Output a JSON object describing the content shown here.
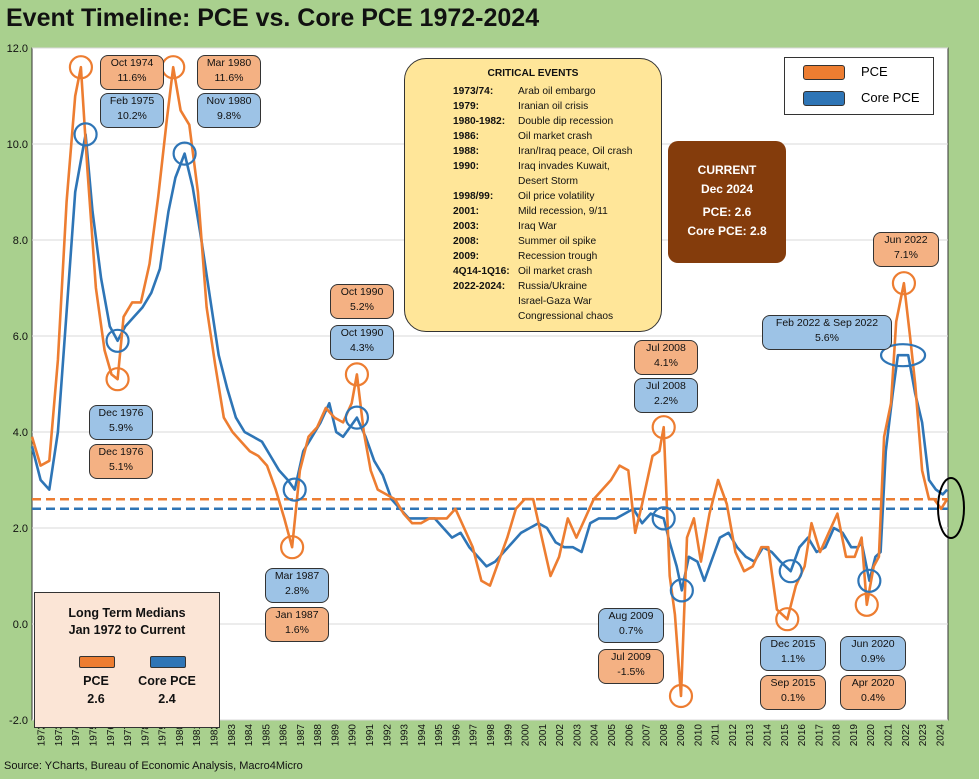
{
  "title": "Event Timeline: PCE vs. Core PCE 1972-2024",
  "source": "Source: YCharts, Bureau of Economic Analysis, Macro4Micro",
  "chart_data": {
    "type": "line",
    "ylim": [
      -2.0,
      12.0
    ],
    "yticks": [
      "-2.0",
      "0.0",
      "2.0",
      "4.0",
      "6.0",
      "8.0",
      "10.0",
      "12.0"
    ],
    "xlim": [
      1972,
      2025
    ],
    "xticks": [
      "1972",
      "1973",
      "1974",
      "1975",
      "1976",
      "1977",
      "1978",
      "1979",
      "1980",
      "1981",
      "1982",
      "1983",
      "1984",
      "1985",
      "1986",
      "1987",
      "1988",
      "1989",
      "1990",
      "1991",
      "1992",
      "1993",
      "1994",
      "1995",
      "1996",
      "1997",
      "1998",
      "1999",
      "2000",
      "2001",
      "2002",
      "2003",
      "2004",
      "2005",
      "2006",
      "2007",
      "2008",
      "2009",
      "2010",
      "2011",
      "2012",
      "2013",
      "2014",
      "2015",
      "2016",
      "2017",
      "2018",
      "2019",
      "2020",
      "2021",
      "2022",
      "2023",
      "2024"
    ],
    "series": [
      {
        "name": "PCE",
        "color": "#ed7d31",
        "median": 2.6,
        "points": [
          [
            1972.0,
            3.9
          ],
          [
            1972.5,
            3.3
          ],
          [
            1973.0,
            3.4
          ],
          [
            1973.5,
            5.5
          ],
          [
            1974.0,
            8.8
          ],
          [
            1974.5,
            11.0
          ],
          [
            1974.83,
            11.6
          ],
          [
            1975.2,
            9.5
          ],
          [
            1975.7,
            7.0
          ],
          [
            1976.2,
            5.7
          ],
          [
            1976.6,
            5.2
          ],
          [
            1976.95,
            5.1
          ],
          [
            1977.3,
            6.4
          ],
          [
            1977.8,
            6.7
          ],
          [
            1978.3,
            6.7
          ],
          [
            1978.8,
            7.5
          ],
          [
            1979.3,
            8.9
          ],
          [
            1979.8,
            10.5
          ],
          [
            1980.17,
            11.6
          ],
          [
            1980.6,
            10.7
          ],
          [
            1981.1,
            10.4
          ],
          [
            1981.6,
            9.0
          ],
          [
            1982.1,
            6.6
          ],
          [
            1982.6,
            5.4
          ],
          [
            1983.1,
            4.3
          ],
          [
            1983.6,
            4.0
          ],
          [
            1984.1,
            3.8
          ],
          [
            1984.6,
            3.6
          ],
          [
            1985.1,
            3.5
          ],
          [
            1985.6,
            3.3
          ],
          [
            1986.1,
            2.8
          ],
          [
            1986.6,
            2.2
          ],
          [
            1987.05,
            1.6
          ],
          [
            1987.5,
            3.2
          ],
          [
            1988.0,
            3.9
          ],
          [
            1988.5,
            4.1
          ],
          [
            1989.0,
            4.5
          ],
          [
            1989.5,
            4.3
          ],
          [
            1990.0,
            4.2
          ],
          [
            1990.5,
            4.6
          ],
          [
            1990.8,
            5.2
          ],
          [
            1991.2,
            4.0
          ],
          [
            1991.6,
            3.2
          ],
          [
            1992.0,
            2.8
          ],
          [
            1992.5,
            2.7
          ],
          [
            1993.0,
            2.6
          ],
          [
            1993.5,
            2.3
          ],
          [
            1994.0,
            2.1
          ],
          [
            1994.5,
            2.1
          ],
          [
            1995.0,
            2.2
          ],
          [
            1995.5,
            2.2
          ],
          [
            1996.0,
            2.2
          ],
          [
            1996.5,
            2.4
          ],
          [
            1997.0,
            2.0
          ],
          [
            1997.5,
            1.6
          ],
          [
            1998.0,
            0.9
          ],
          [
            1998.5,
            0.8
          ],
          [
            1999.0,
            1.3
          ],
          [
            1999.5,
            1.8
          ],
          [
            2000.0,
            2.4
          ],
          [
            2000.5,
            2.6
          ],
          [
            2001.0,
            2.6
          ],
          [
            2001.5,
            1.8
          ],
          [
            2002.0,
            1.0
          ],
          [
            2002.5,
            1.4
          ],
          [
            2003.0,
            2.2
          ],
          [
            2003.5,
            1.8
          ],
          [
            2004.0,
            2.2
          ],
          [
            2004.5,
            2.6
          ],
          [
            2005.0,
            2.8
          ],
          [
            2005.5,
            3.0
          ],
          [
            2006.0,
            3.3
          ],
          [
            2006.5,
            3.2
          ],
          [
            2006.9,
            1.9
          ],
          [
            2007.3,
            2.5
          ],
          [
            2007.9,
            3.5
          ],
          [
            2008.3,
            3.6
          ],
          [
            2008.55,
            4.1
          ],
          [
            2008.9,
            1.0
          ],
          [
            2009.2,
            0.2
          ],
          [
            2009.55,
            -1.5
          ],
          [
            2009.9,
            1.8
          ],
          [
            2010.3,
            2.2
          ],
          [
            2010.7,
            1.3
          ],
          [
            2011.2,
            2.3
          ],
          [
            2011.7,
            3.0
          ],
          [
            2012.2,
            2.5
          ],
          [
            2012.7,
            1.5
          ],
          [
            2013.2,
            1.1
          ],
          [
            2013.7,
            1.2
          ],
          [
            2014.2,
            1.6
          ],
          [
            2014.6,
            1.6
          ],
          [
            2015.1,
            0.3
          ],
          [
            2015.7,
            0.1
          ],
          [
            2016.2,
            0.8
          ],
          [
            2016.7,
            1.2
          ],
          [
            2017.1,
            2.1
          ],
          [
            2017.6,
            1.5
          ],
          [
            2018.1,
            1.9
          ],
          [
            2018.6,
            2.3
          ],
          [
            2019.1,
            1.4
          ],
          [
            2019.6,
            1.4
          ],
          [
            2020.0,
            1.8
          ],
          [
            2020.3,
            0.4
          ],
          [
            2020.7,
            1.2
          ],
          [
            2021.0,
            1.4
          ],
          [
            2021.3,
            3.9
          ],
          [
            2021.7,
            4.6
          ],
          [
            2022.0,
            6.3
          ],
          [
            2022.45,
            7.1
          ],
          [
            2022.8,
            6.0
          ],
          [
            2023.1,
            5.0
          ],
          [
            2023.5,
            3.2
          ],
          [
            2023.9,
            2.6
          ],
          [
            2024.2,
            2.6
          ],
          [
            2024.6,
            2.4
          ],
          [
            2024.95,
            2.6
          ]
        ]
      },
      {
        "name": "Core PCE",
        "color": "#2e75b6",
        "median": 2.4,
        "points": [
          [
            1972.0,
            3.7
          ],
          [
            1972.5,
            3.0
          ],
          [
            1973.0,
            2.8
          ],
          [
            1973.5,
            4.0
          ],
          [
            1974.0,
            6.5
          ],
          [
            1974.5,
            9.0
          ],
          [
            1975.1,
            10.2
          ],
          [
            1975.5,
            8.6
          ],
          [
            1976.0,
            7.2
          ],
          [
            1976.5,
            6.2
          ],
          [
            1976.95,
            5.9
          ],
          [
            1977.4,
            6.2
          ],
          [
            1977.9,
            6.4
          ],
          [
            1978.4,
            6.6
          ],
          [
            1978.9,
            6.9
          ],
          [
            1979.4,
            7.4
          ],
          [
            1979.9,
            8.6
          ],
          [
            1980.3,
            9.3
          ],
          [
            1980.83,
            9.8
          ],
          [
            1981.3,
            9.1
          ],
          [
            1981.8,
            8.0
          ],
          [
            1982.3,
            6.8
          ],
          [
            1982.8,
            5.6
          ],
          [
            1983.3,
            4.9
          ],
          [
            1983.8,
            4.3
          ],
          [
            1984.3,
            4.0
          ],
          [
            1984.8,
            3.9
          ],
          [
            1985.3,
            3.8
          ],
          [
            1985.8,
            3.5
          ],
          [
            1986.3,
            3.2
          ],
          [
            1986.8,
            3.0
          ],
          [
            1987.2,
            2.8
          ],
          [
            1987.7,
            3.6
          ],
          [
            1988.2,
            3.9
          ],
          [
            1988.7,
            4.2
          ],
          [
            1989.2,
            4.6
          ],
          [
            1989.6,
            4.0
          ],
          [
            1990.0,
            3.9
          ],
          [
            1990.4,
            4.1
          ],
          [
            1990.8,
            4.3
          ],
          [
            1991.3,
            3.9
          ],
          [
            1991.8,
            3.4
          ],
          [
            1992.3,
            3.1
          ],
          [
            1992.8,
            2.6
          ],
          [
            1993.3,
            2.4
          ],
          [
            1993.8,
            2.2
          ],
          [
            1994.3,
            2.2
          ],
          [
            1994.8,
            2.2
          ],
          [
            1995.3,
            2.2
          ],
          [
            1995.8,
            2.0
          ],
          [
            1996.3,
            1.8
          ],
          [
            1996.8,
            1.9
          ],
          [
            1997.3,
            1.6
          ],
          [
            1997.8,
            1.4
          ],
          [
            1998.3,
            1.2
          ],
          [
            1998.8,
            1.3
          ],
          [
            1999.3,
            1.5
          ],
          [
            1999.8,
            1.7
          ],
          [
            2000.3,
            1.9
          ],
          [
            2000.8,
            2.0
          ],
          [
            2001.3,
            2.1
          ],
          [
            2001.8,
            2.0
          ],
          [
            2002.3,
            1.7
          ],
          [
            2002.8,
            1.6
          ],
          [
            2003.3,
            1.6
          ],
          [
            2003.8,
            1.5
          ],
          [
            2004.3,
            2.1
          ],
          [
            2004.8,
            2.2
          ],
          [
            2005.3,
            2.2
          ],
          [
            2005.8,
            2.2
          ],
          [
            2006.3,
            2.3
          ],
          [
            2006.8,
            2.4
          ],
          [
            2007.3,
            2.1
          ],
          [
            2007.8,
            2.3
          ],
          [
            2008.55,
            2.2
          ],
          [
            2008.9,
            1.7
          ],
          [
            2009.3,
            1.2
          ],
          [
            2009.6,
            0.7
          ],
          [
            2010.0,
            1.4
          ],
          [
            2010.5,
            1.3
          ],
          [
            2010.9,
            0.9
          ],
          [
            2011.3,
            1.3
          ],
          [
            2011.8,
            1.8
          ],
          [
            2012.3,
            1.9
          ],
          [
            2012.8,
            1.6
          ],
          [
            2013.3,
            1.4
          ],
          [
            2013.8,
            1.3
          ],
          [
            2014.3,
            1.6
          ],
          [
            2014.8,
            1.5
          ],
          [
            2015.3,
            1.3
          ],
          [
            2015.9,
            1.1
          ],
          [
            2016.4,
            1.6
          ],
          [
            2016.9,
            1.8
          ],
          [
            2017.4,
            1.5
          ],
          [
            2017.9,
            1.6
          ],
          [
            2018.4,
            2.0
          ],
          [
            2018.9,
            1.9
          ],
          [
            2019.4,
            1.6
          ],
          [
            2019.8,
            1.6
          ],
          [
            2020.0,
            1.7
          ],
          [
            2020.45,
            0.9
          ],
          [
            2020.8,
            1.4
          ],
          [
            2021.1,
            1.5
          ],
          [
            2021.4,
            3.6
          ],
          [
            2021.8,
            4.8
          ],
          [
            2022.1,
            5.6
          ],
          [
            2022.7,
            5.6
          ],
          [
            2023.1,
            4.8
          ],
          [
            2023.5,
            4.2
          ],
          [
            2023.9,
            3.0
          ],
          [
            2024.3,
            2.8
          ],
          [
            2024.7,
            2.7
          ],
          [
            2024.95,
            2.8
          ]
        ]
      }
    ],
    "annotations": [
      {
        "series": "PCE",
        "label": "Oct 1974",
        "value": "11.6%",
        "x": 1974.83,
        "y": 11.6
      },
      {
        "series": "Core PCE",
        "label": "Feb 1975",
        "value": "10.2%",
        "x": 1975.1,
        "y": 10.2
      },
      {
        "series": "PCE",
        "label": "Mar 1980",
        "value": "11.6%",
        "x": 1980.17,
        "y": 11.6
      },
      {
        "series": "Core PCE",
        "label": "Nov 1980",
        "value": "9.8%",
        "x": 1980.83,
        "y": 9.8
      },
      {
        "series": "Core PCE",
        "label": "Dec 1976",
        "value": "5.9%",
        "x": 1976.95,
        "y": 5.9
      },
      {
        "series": "PCE",
        "label": "Dec 1976",
        "value": "5.1%",
        "x": 1976.95,
        "y": 5.1
      },
      {
        "series": "Core PCE",
        "label": "Mar 1987",
        "value": "2.8%",
        "x": 1987.2,
        "y": 2.8
      },
      {
        "series": "PCE",
        "label": "Jan 1987",
        "value": "1.6%",
        "x": 1987.05,
        "y": 1.6
      },
      {
        "series": "PCE",
        "label": "Oct 1990",
        "value": "5.2%",
        "x": 1990.8,
        "y": 5.2
      },
      {
        "series": "Core PCE",
        "label": "Oct 1990",
        "value": "4.3%",
        "x": 1990.8,
        "y": 4.3
      },
      {
        "series": "PCE",
        "label": "Jul 2008",
        "value": "4.1%",
        "x": 2008.55,
        "y": 4.1
      },
      {
        "series": "Core PCE",
        "label": "Jul 2008",
        "value": "2.2%",
        "x": 2008.55,
        "y": 2.2
      },
      {
        "series": "Core PCE",
        "label": "Aug 2009",
        "value": "0.7%",
        "x": 2009.6,
        "y": 0.7
      },
      {
        "series": "PCE",
        "label": "Jul 2009",
        "value": "-1.5%",
        "x": 2009.55,
        "y": -1.5
      },
      {
        "series": "Core PCE",
        "label": "Dec 2015",
        "value": "1.1%",
        "x": 2015.9,
        "y": 1.1
      },
      {
        "series": "PCE",
        "label": "Sep 2015",
        "value": "0.1%",
        "x": 2015.7,
        "y": 0.1
      },
      {
        "series": "Core PCE",
        "label": "Jun 2020",
        "value": "0.9%",
        "x": 2020.45,
        "y": 0.9
      },
      {
        "series": "PCE",
        "label": "Apr 2020",
        "value": "0.4%",
        "x": 2020.3,
        "y": 0.4
      },
      {
        "series": "PCE",
        "label": "Jun 2022",
        "value": "7.1%",
        "x": 2022.45,
        "y": 7.1
      },
      {
        "series": "Core PCE",
        "label": "Feb 2022 & Sep 2022",
        "value": "5.6%",
        "x": 2022.4,
        "y": 5.6
      }
    ]
  },
  "legend": {
    "pce": "PCE",
    "core": "Core PCE"
  },
  "events": {
    "heading": "CRITICAL EVENTS",
    "items": [
      {
        "year": "1973/74:",
        "text": "Arab oil embargo"
      },
      {
        "year": "1979:",
        "text": "Iranian oil crisis"
      },
      {
        "year": "1980-1982:",
        "text": "Double dip recession"
      },
      {
        "year": "1986:",
        "text": "Oil market crash"
      },
      {
        "year": "1988:",
        "text": "Iran/Iraq peace, Oil crash"
      },
      {
        "year": "1990:",
        "text": "Iraq invades Kuwait,"
      },
      {
        "year": "",
        "text": "Desert Storm"
      },
      {
        "year": "1998/99:",
        "text": "Oil price volatility"
      },
      {
        "year": "2001:",
        "text": "Mild recession, 9/11"
      },
      {
        "year": "2003:",
        "text": "Iraq War"
      },
      {
        "year": "2008:",
        "text": "Summer oil spike"
      },
      {
        "year": "2009:",
        "text": "Recession trough"
      },
      {
        "year": "4Q14-1Q16:",
        "text": "Oil market crash"
      },
      {
        "year": "2022-2024:",
        "text": "Russia/Ukraine"
      },
      {
        "year": "",
        "text": "Israel-Gaza War"
      },
      {
        "year": "",
        "text": "Congressional chaos"
      }
    ]
  },
  "current": {
    "title": "CURRENT",
    "date": "Dec 2024",
    "pce": "PCE: 2.6",
    "core": "Core PCE: 2.8"
  },
  "medians": {
    "title1": "Long Term Medians",
    "title2": "Jan 1972 to Current",
    "pce_label": "PCE",
    "pce_value": "2.6",
    "core_label": "Core PCE",
    "core_value": "2.4"
  }
}
